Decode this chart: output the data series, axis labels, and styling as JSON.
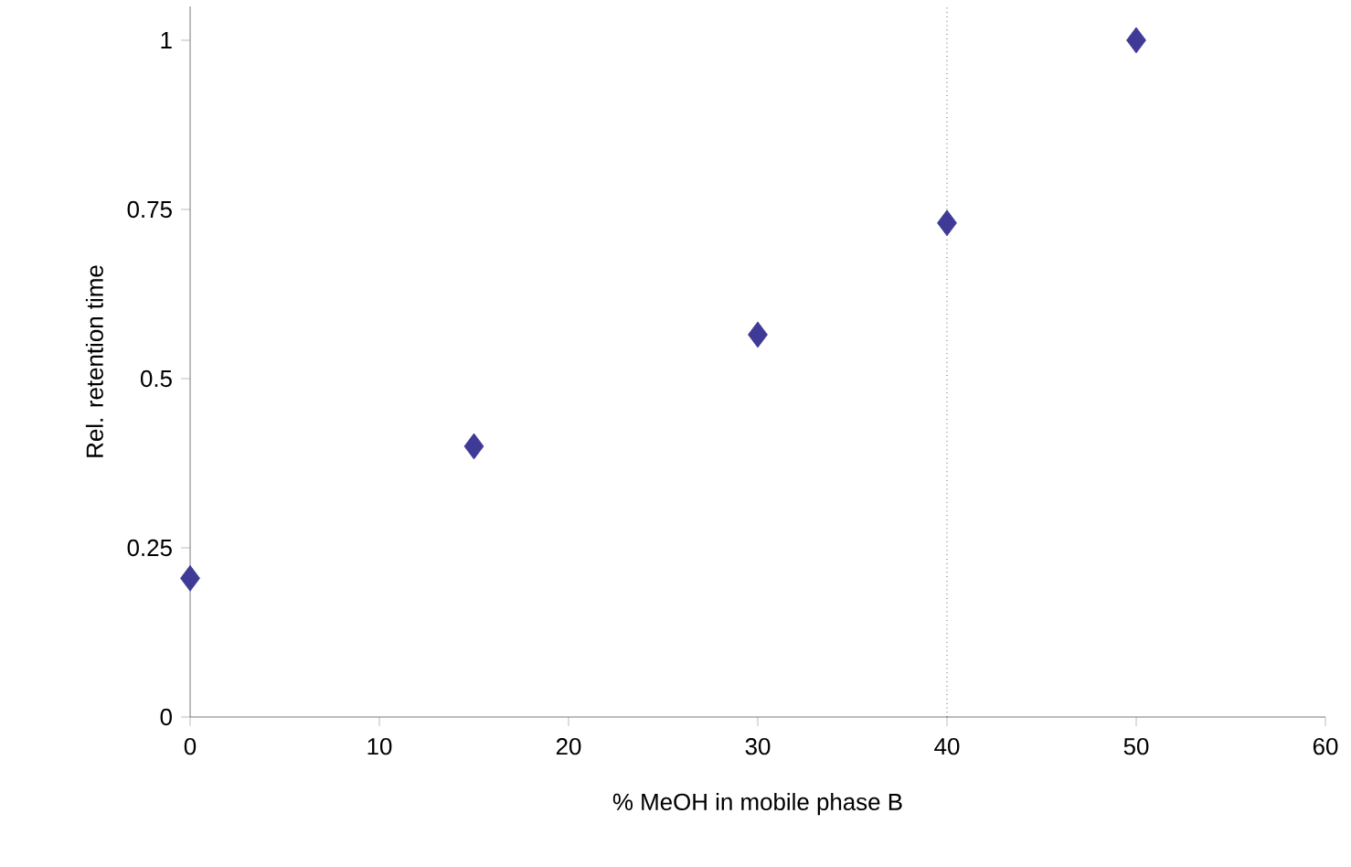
{
  "chart_data": {
    "type": "scatter",
    "xlabel": "% MeOH in mobile phase B",
    "ylabel": "Rel. retention time",
    "x": [
      0,
      15,
      30,
      40,
      50
    ],
    "series": [
      {
        "color": "#3f3a96",
        "values": [
          0.205,
          0.4,
          0.565,
          0.73,
          1.0
        ]
      }
    ],
    "marker": "diamond",
    "xlim": [
      0,
      60
    ],
    "xticks": [
      0,
      10,
      20,
      30,
      40,
      50,
      60
    ],
    "ylim": [
      0,
      1.05
    ],
    "yticks": [
      0,
      0.25,
      0.5,
      0.75,
      1
    ],
    "ref_lines": [
      {
        "axis": "x",
        "value": 40,
        "line_style": "dotted",
        "color": "#000000"
      }
    ]
  }
}
